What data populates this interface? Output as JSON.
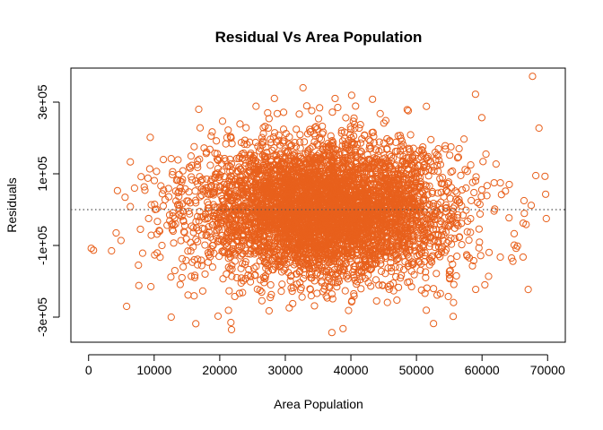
{
  "chart_data": {
    "type": "scatter",
    "title": "Residual Vs Area Population",
    "xlabel": "Area Population",
    "ylabel": "Residuals",
    "xlim": [
      -2700,
      72700
    ],
    "ylim": [
      -370000,
      395000
    ],
    "x_ticks": [
      {
        "value": 0,
        "label": "0"
      },
      {
        "value": 10000,
        "label": "10000"
      },
      {
        "value": 20000,
        "label": "20000"
      },
      {
        "value": 30000,
        "label": "30000"
      },
      {
        "value": 40000,
        "label": "40000"
      },
      {
        "value": 50000,
        "label": "50000"
      },
      {
        "value": 60000,
        "label": "60000"
      },
      {
        "value": 70000,
        "label": "70000"
      }
    ],
    "y_ticks": [
      {
        "value": -300000,
        "label": "-3e+05"
      },
      {
        "value": -100000,
        "label": "-1e+05"
      },
      {
        "value": 100000,
        "label": "1e+05"
      },
      {
        "value": 300000,
        "label": "3e+05"
      }
    ],
    "reference_line": {
      "y": 0,
      "style": "dotted"
    },
    "point_color": "#E8601C",
    "point_shape": "open-circle",
    "grid": false,
    "series": [
      {
        "values": [
          {
            "x": 67700,
            "y": 372000
          },
          {
            "x": 59000,
            "y": 322000
          },
          {
            "x": 32700,
            "y": 340000
          },
          {
            "x": 43300,
            "y": 308000
          },
          {
            "x": 16800,
            "y": 280000
          },
          {
            "x": 38000,
            "y": 285000
          },
          {
            "x": 400,
            "y": -108000
          },
          {
            "x": 3500,
            "y": -115000
          },
          {
            "x": 4200,
            "y": -65000
          },
          {
            "x": 4400,
            "y": 53000
          },
          {
            "x": 5800,
            "y": -270000
          },
          {
            "x": 7000,
            "y": 60000
          },
          {
            "x": 7600,
            "y": -155000
          },
          {
            "x": 9500,
            "y": -215000
          },
          {
            "x": 68200,
            "y": 95000
          },
          {
            "x": 69600,
            "y": 93000
          },
          {
            "x": 69700,
            "y": 43000
          },
          {
            "x": 69800,
            "y": -25000
          },
          {
            "x": 67500,
            "y": 12000
          },
          {
            "x": 64500,
            "y": -135000
          },
          {
            "x": 65200,
            "y": -108000
          },
          {
            "x": 21800,
            "y": -335000
          },
          {
            "x": 21700,
            "y": -315000
          },
          {
            "x": 37100,
            "y": -343000
          },
          {
            "x": 38800,
            "y": -332000
          },
          {
            "x": 52600,
            "y": -318000
          },
          {
            "x": 55600,
            "y": -298000
          },
          {
            "x": 12600,
            "y": -300000
          },
          {
            "x": 66400,
            "y": 25000
          },
          {
            "x": 60600,
            "y": 155000
          }
        ]
      }
    ]
  }
}
